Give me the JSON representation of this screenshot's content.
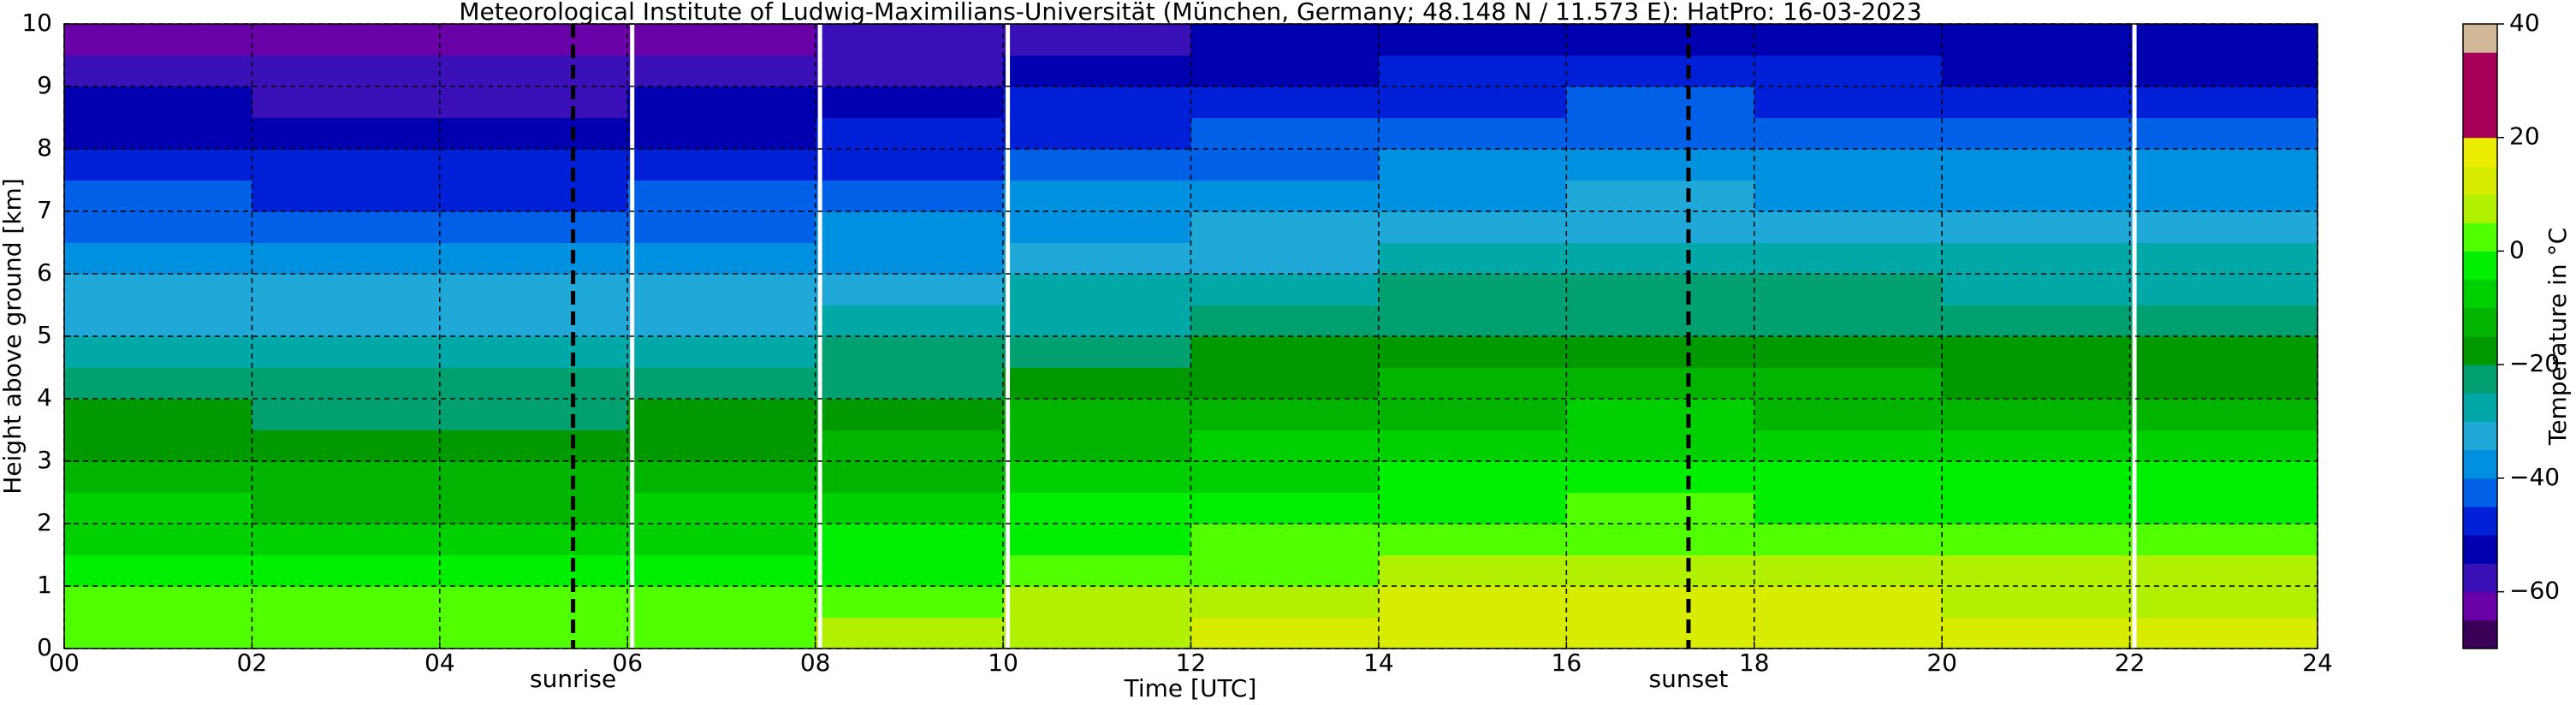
{
  "chart_data": {
    "type": "heatmap",
    "title": "Meteorological Institute of Ludwig-Maximilians-Universität (München, Germany; 48.148 N / 11.573 E):    HatPro: 16-03-2023",
    "xlabel": "Time [UTC]",
    "ylabel": "Height above ground [km]",
    "x": [
      0,
      2,
      4,
      6,
      8,
      10,
      12,
      14,
      16,
      18,
      20,
      22,
      24
    ],
    "y": [
      0,
      0.5,
      1,
      1.5,
      2,
      2.5,
      3,
      3.5,
      4,
      4.5,
      5,
      5.5,
      6,
      6.5,
      7,
      7.5,
      8,
      8.5,
      9,
      9.5,
      10
    ],
    "values": [
      [
        4,
        1,
        -3,
        -6,
        -10,
        -13,
        -17,
        -20,
        -24,
        -27,
        -31,
        -34,
        -38,
        -41,
        -45,
        -48,
        -52,
        -55,
        -59,
        -62
      ],
      [
        3,
        0,
        -4,
        -7,
        -11,
        -14,
        -18,
        -21,
        -25,
        -28,
        -32,
        -35,
        -39,
        -42,
        -46,
        -49,
        -53,
        -56,
        -60,
        -63
      ],
      [
        3,
        0,
        -4,
        -7,
        -11,
        -14,
        -18,
        -21,
        -25,
        -28,
        -32,
        -35,
        -39,
        -42,
        -46,
        -49,
        -53,
        -56,
        -60,
        -63
      ],
      [
        4,
        1,
        -3,
        -6,
        -10,
        -13,
        -17,
        -20,
        -24,
        -27,
        -31,
        -34,
        -38,
        -41,
        -45,
        -48,
        -52,
        -55,
        -59,
        -62
      ],
      [
        6,
        3,
        -1,
        -4,
        -8,
        -11,
        -15,
        -18,
        -22,
        -25,
        -29,
        -32,
        -36,
        -39,
        -43,
        -46,
        -50,
        -53,
        -57,
        -60
      ],
      [
        9,
        6,
        2,
        -1,
        -5,
        -8,
        -12,
        -15,
        -19,
        -22,
        -26,
        -29,
        -33,
        -36,
        -40,
        -43,
        -47,
        -50,
        -54,
        -57
      ],
      [
        11,
        8,
        4,
        1,
        -3,
        -6,
        -10,
        -13,
        -17,
        -20,
        -24,
        -27,
        -31,
        -34,
        -38,
        -41,
        -45,
        -48,
        -52,
        -55
      ],
      [
        13,
        10,
        6,
        3,
        -1,
        -4,
        -8,
        -11,
        -15,
        -18,
        -22,
        -25,
        -29,
        -32,
        -36,
        -39,
        -43,
        -46,
        -50,
        -53
      ],
      [
        14,
        11,
        7,
        4,
        0,
        -3,
        -7,
        -10,
        -14,
        -17,
        -21,
        -24,
        -28,
        -31,
        -35,
        -38,
        -42,
        -45,
        -49,
        -52
      ],
      [
        13,
        10,
        6,
        3,
        -1,
        -4,
        -8,
        -11,
        -15,
        -18,
        -22,
        -25,
        -29,
        -32,
        -36,
        -39,
        -43,
        -46,
        -50,
        -53
      ],
      [
        12,
        9,
        5,
        2,
        -2,
        -5,
        -9,
        -12,
        -16,
        -19,
        -23,
        -26,
        -30,
        -33,
        -37,
        -40,
        -44,
        -47,
        -51,
        -54
      ],
      [
        12,
        9,
        5,
        2,
        -2,
        -5,
        -9,
        -12,
        -16,
        -19,
        -23,
        -26,
        -30,
        -33,
        -37,
        -40,
        -44,
        -47,
        -51,
        -54
      ]
    ],
    "xlim": [
      0,
      24
    ],
    "xticks": [
      {
        "value": 0,
        "label": "00"
      },
      {
        "value": 2,
        "label": "02"
      },
      {
        "value": 4,
        "label": "04"
      },
      {
        "value": 6,
        "label": "06"
      },
      {
        "value": 8,
        "label": "08"
      },
      10,
      12,
      14,
      16,
      18,
      20,
      22,
      24
    ],
    "ylim": [
      0,
      10
    ],
    "yticks": [
      0,
      1,
      2,
      3,
      4,
      5,
      6,
      7,
      8,
      9,
      10
    ],
    "grid": true,
    "gaps": [
      6.05,
      8.05,
      10.05,
      22.05
    ],
    "annotations": [
      {
        "text": "sunrise",
        "x": 5.42
      },
      {
        "text": "sunset",
        "x": 17.3
      }
    ],
    "colorbar": {
      "label": "Temperature in °C",
      "clim": [
        -70,
        40
      ],
      "ticks": [
        {
          "value": -60,
          "label": "−60"
        },
        {
          "value": -40,
          "label": "−40"
        },
        {
          "value": -20,
          "label": "−20"
        },
        0,
        20,
        40
      ],
      "bounds": [
        -70,
        -65,
        -60,
        -55,
        -50,
        -45,
        -40,
        -35,
        -30,
        -25,
        -20,
        -15,
        -10,
        -5,
        0,
        5,
        10,
        15,
        20,
        35,
        40
      ],
      "colors": [
        "#3a0058",
        "#6a00a8",
        "#3a10b8",
        "#0000b0",
        "#0020d8",
        "#0060e8",
        "#0090e0",
        "#20a8d8",
        "#00a8a8",
        "#00a070",
        "#009a00",
        "#00b400",
        "#00d000",
        "#00ee00",
        "#50ff00",
        "#b0f000",
        "#d8ec00",
        "#ecec00",
        "#a80058",
        "#d0b898"
      ]
    }
  }
}
